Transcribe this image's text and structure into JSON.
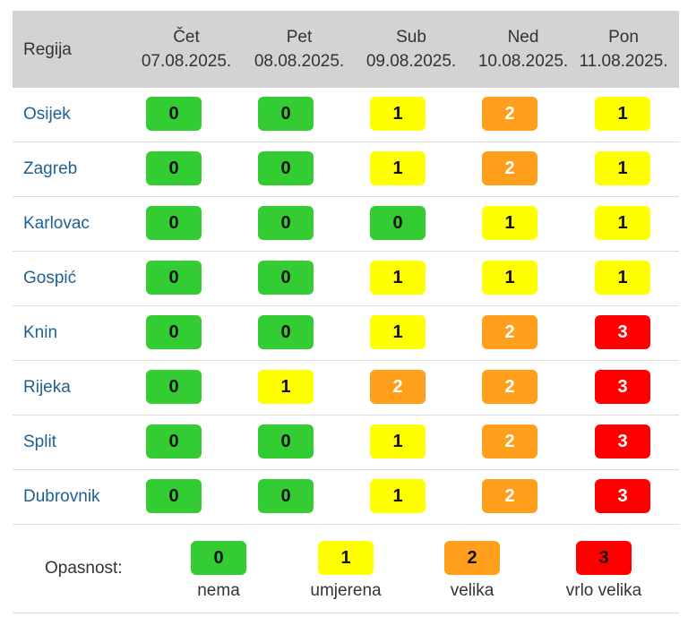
{
  "header": {
    "region_label": "Regija",
    "days": [
      {
        "day": "Čet",
        "date": "07.08.2025."
      },
      {
        "day": "Pet",
        "date": "08.08.2025."
      },
      {
        "day": "Sub",
        "date": "09.08.2025."
      },
      {
        "day": "Ned",
        "date": "10.08.2025."
      },
      {
        "day": "Pon",
        "date": "11.08.2025."
      }
    ]
  },
  "rows": [
    {
      "region": "Osijek",
      "levels": [
        "0",
        "0",
        "1",
        "2",
        "1"
      ]
    },
    {
      "region": "Zagreb",
      "levels": [
        "0",
        "0",
        "1",
        "2",
        "1"
      ]
    },
    {
      "region": "Karlovac",
      "levels": [
        "0",
        "0",
        "0",
        "1",
        "1"
      ]
    },
    {
      "region": "Gospić",
      "levels": [
        "0",
        "0",
        "1",
        "1",
        "1"
      ]
    },
    {
      "region": "Knin",
      "levels": [
        "0",
        "0",
        "1",
        "2",
        "3"
      ]
    },
    {
      "region": "Rijeka",
      "levels": [
        "0",
        "1",
        "2",
        "2",
        "3"
      ]
    },
    {
      "region": "Split",
      "levels": [
        "0",
        "0",
        "1",
        "2",
        "3"
      ]
    },
    {
      "region": "Dubrovnik",
      "levels": [
        "0",
        "0",
        "1",
        "2",
        "3"
      ]
    }
  ],
  "legend": {
    "label": "Opasnost:",
    "items": [
      {
        "value": "0",
        "text": "nema"
      },
      {
        "value": "1",
        "text": "umjerena"
      },
      {
        "value": "2",
        "text": "velika"
      },
      {
        "value": "3",
        "text": "vrlo velika"
      }
    ]
  },
  "colors": {
    "level0": "#33cc33",
    "level1": "#ffff00",
    "level2": "#ff9f1c",
    "level3": "#ff0000",
    "header_bg": "#d3d3d3",
    "region_link": "#1f5f91"
  }
}
